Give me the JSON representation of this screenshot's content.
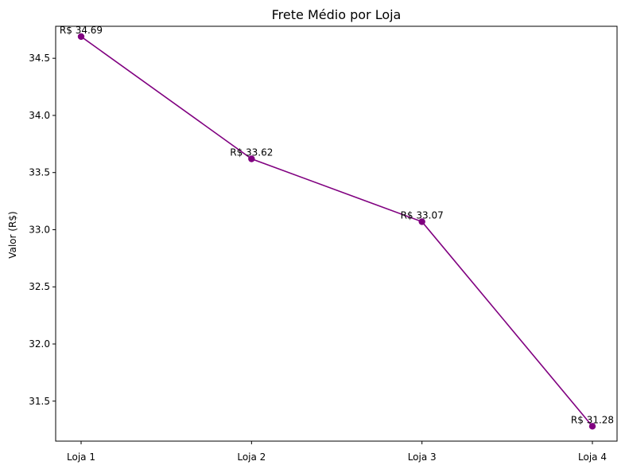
{
  "chart_data": {
    "type": "line",
    "title": "Frete Médio por Loja",
    "xlabel": "",
    "ylabel": "Valor (R$)",
    "categories": [
      "Loja 1",
      "Loja 2",
      "Loja 3",
      "Loja 4"
    ],
    "series": [
      {
        "values": [
          34.69,
          33.62,
          33.07,
          31.28
        ],
        "color": "#800080",
        "marker": "circle"
      }
    ],
    "data_labels": [
      "R$ 34.69",
      "R$ 33.62",
      "R$ 33.07",
      "R$ 31.28"
    ],
    "ylim": [
      31.15,
      34.78
    ],
    "yticks": [
      31.5,
      32.0,
      32.5,
      33.0,
      33.5,
      34.0,
      34.5
    ],
    "ytick_labels": [
      "31.5",
      "32.0",
      "32.5",
      "33.0",
      "33.5",
      "34.0",
      "34.5"
    ],
    "grid": false,
    "legend": "none"
  }
}
